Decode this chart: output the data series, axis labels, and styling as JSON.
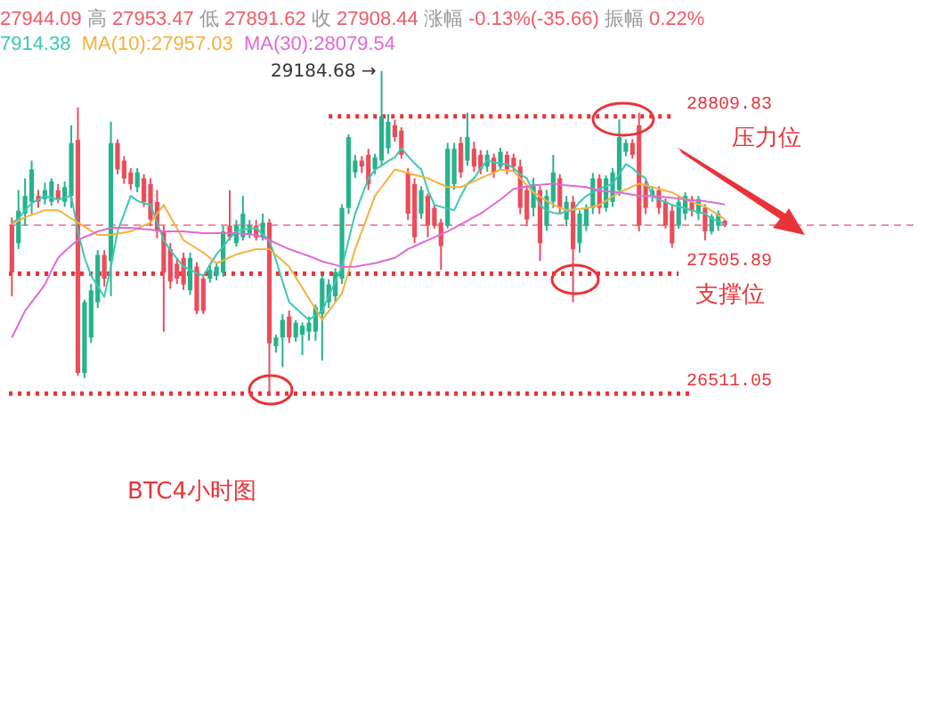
{
  "chart_data": {
    "type": "candlestick",
    "categories": [
      null,
      null,
      null,
      null,
      null,
      null,
      null,
      null,
      null,
      null,
      null,
      null,
      null,
      null,
      null,
      null,
      null,
      null,
      null,
      null,
      null,
      null,
      null,
      null,
      null,
      null,
      null,
      null,
      null,
      null,
      null,
      null,
      null,
      null,
      null,
      null,
      null,
      null,
      null,
      null,
      null,
      null,
      null,
      null,
      null,
      null,
      null,
      null,
      null,
      null,
      null,
      null,
      null,
      null,
      null,
      null,
      null,
      null,
      null,
      null,
      null,
      null,
      null,
      null,
      null,
      null,
      null,
      null,
      null,
      null,
      null,
      null,
      null,
      null,
      null,
      null,
      null,
      null,
      null,
      null,
      null,
      null,
      null,
      null,
      null,
      null,
      null,
      null,
      null,
      null,
      null,
      null,
      null,
      null,
      null,
      null,
      null,
      null,
      null,
      null,
      null,
      null,
      null,
      null,
      null,
      null,
      null,
      null,
      null
    ],
    "ohlc": [
      [
        27904,
        27973,
        27318,
        27514
      ],
      [
        27758,
        28198,
        27709,
        28027
      ],
      [
        28003,
        28296,
        27904,
        28150
      ],
      [
        28101,
        28443,
        28003,
        28370
      ],
      [
        28150,
        28200,
        28050,
        28101
      ],
      [
        28124,
        28260,
        28080,
        28198
      ],
      [
        28101,
        28296,
        28070,
        28271
      ],
      [
        28198,
        28250,
        28090,
        28124
      ],
      [
        28101,
        28270,
        28060,
        28223
      ],
      [
        28150,
        28736,
        28050,
        28589
      ],
      [
        28614,
        28883,
        26660,
        26682
      ],
      [
        26682,
        27290,
        26640,
        27269
      ],
      [
        26976,
        27420,
        26930,
        27367
      ],
      [
        27269,
        27700,
        27220,
        27660
      ],
      [
        27660,
        27700,
        27400,
        27464
      ],
      [
        27611,
        28765,
        27318,
        28589
      ],
      [
        28589,
        28620,
        28330,
        28370
      ],
      [
        28443,
        28480,
        28250,
        28296
      ],
      [
        28345,
        28380,
        28200,
        28248
      ],
      [
        28223,
        28380,
        28180,
        28345
      ],
      [
        28296,
        28330,
        28060,
        28101
      ],
      [
        28248,
        28296,
        27900,
        27954
      ],
      [
        28101,
        28200,
        27800,
        27856
      ],
      [
        27856,
        27900,
        27024,
        27514
      ],
      [
        27709,
        27760,
        27380,
        27440
      ],
      [
        27587,
        27640,
        27420,
        27464
      ],
      [
        27636,
        27680,
        27370,
        27416
      ],
      [
        27367,
        27680,
        27330,
        27636
      ],
      [
        27563,
        27600,
        27170,
        27196
      ],
      [
        27464,
        27500,
        27170,
        27196
      ],
      [
        27464,
        27580,
        27430,
        27538
      ],
      [
        27489,
        27600,
        27450,
        27563
      ],
      [
        27514,
        27904,
        27480,
        27856
      ],
      [
        27904,
        28198,
        27780,
        27807
      ],
      [
        27758,
        27950,
        27730,
        27904
      ],
      [
        27807,
        28150,
        27780,
        28003
      ],
      [
        27832,
        27950,
        27800,
        27904
      ],
      [
        27904,
        27950,
        27780,
        27807
      ],
      [
        27807,
        28003,
        27780,
        27929
      ],
      [
        27929,
        27960,
        26511.05,
        26927
      ],
      [
        26903,
        27000,
        26850,
        26976
      ],
      [
        26976,
        27170,
        26731,
        27122
      ],
      [
        27150,
        27200,
        26930,
        26976
      ],
      [
        26976,
        27120,
        26940,
        27098
      ],
      [
        27000,
        27100,
        26830,
        27074
      ],
      [
        27024,
        27150,
        26950,
        27098
      ],
      [
        27024,
        27250,
        26950,
        27225
      ],
      [
        27171,
        27490,
        26785,
        27464
      ],
      [
        27269,
        27460,
        27220,
        27416
      ],
      [
        27318,
        27550,
        27270,
        27518
      ],
      [
        27464,
        28080,
        27420,
        28051
      ],
      [
        28051,
        28660,
        28000,
        28638
      ],
      [
        28345,
        28490,
        28300,
        28443
      ],
      [
        28443,
        28480,
        28340,
        28394
      ],
      [
        28491,
        28540,
        28200,
        28248
      ],
      [
        28370,
        28500,
        28330,
        28471
      ],
      [
        28443,
        29184.68,
        28400,
        28810
      ],
      [
        28545,
        28830,
        28500,
        28765
      ],
      [
        28736,
        28780,
        28600,
        28638
      ],
      [
        28692,
        28720,
        28460,
        28491
      ],
      [
        28345,
        28380,
        27950,
        28003
      ],
      [
        28248,
        28296,
        27760,
        27807
      ],
      [
        28003,
        28230,
        27960,
        28198
      ],
      [
        28150,
        28170,
        27807,
        27904
      ],
      [
        28051,
        28080,
        27880,
        27904
      ],
      [
        27929,
        27960,
        27538,
        27734
      ],
      [
        27904,
        28590,
        27880,
        28541
      ],
      [
        28248,
        28590,
        28200,
        28541
      ],
      [
        28589,
        28640,
        28300,
        28345
      ],
      [
        28443,
        28840,
        28400,
        28638
      ],
      [
        28541,
        28600,
        28350,
        28394
      ],
      [
        28491,
        28530,
        28330,
        28370
      ],
      [
        28394,
        28530,
        28350,
        28491
      ],
      [
        28467,
        28500,
        28300,
        28345
      ],
      [
        28394,
        28550,
        28360,
        28516
      ],
      [
        28491,
        28520,
        28330,
        28370
      ],
      [
        28467,
        28500,
        28350,
        28394
      ],
      [
        28394,
        28450,
        28000,
        28051
      ],
      [
        28198,
        28230,
        27900,
        27954
      ],
      [
        28051,
        28300,
        27980,
        28248
      ],
      [
        28198,
        28230,
        27611,
        27758
      ],
      [
        27904,
        28200,
        27860,
        28150
      ],
      [
        28101,
        28491,
        28050,
        28345
      ],
      [
        28296,
        28330,
        28000,
        28051
      ],
      [
        27954,
        28150,
        27900,
        28101
      ],
      [
        28101,
        28150,
        27269,
        27709
      ],
      [
        27758,
        28030,
        27680,
        28003
      ],
      [
        27904,
        28080,
        27860,
        28051
      ],
      [
        28051,
        28340,
        28000,
        28296
      ],
      [
        28296,
        28330,
        28000,
        28051
      ],
      [
        28051,
        28320,
        28020,
        28296
      ],
      [
        28101,
        28380,
        28060,
        28345
      ],
      [
        28198,
        28785,
        28150,
        28638
      ],
      [
        28516,
        28620,
        28480,
        28589
      ],
      [
        28589,
        28620,
        28460,
        28491
      ],
      [
        28736,
        28840,
        27856,
        27904
      ],
      [
        28248,
        28280,
        28000,
        28051
      ],
      [
        28150,
        28230,
        28100,
        28198
      ],
      [
        28198,
        28230,
        28000,
        28051
      ],
      [
        28101,
        28130,
        27880,
        27904
      ],
      [
        28027,
        28080,
        27720,
        27758
      ],
      [
        27904,
        28150,
        27880,
        28101
      ],
      [
        28003,
        28180,
        27950,
        28150
      ],
      [
        28124,
        28150,
        27980,
        28027
      ],
      [
        28003,
        28150,
        27950,
        28124
      ],
      [
        28051,
        28080,
        27780,
        27856
      ],
      [
        27856,
        28000,
        27830,
        27979
      ],
      [
        27904,
        28030,
        27860,
        28003
      ],
      [
        27944.09,
        27953.47,
        27891.62,
        27908.44
      ]
    ],
    "colors": [
      "#eb4d5c",
      "#26b38d",
      "#26b38d",
      "#26b38d",
      "#eb4d5c",
      "#26b38d",
      "#26b38d",
      "#eb4d5c",
      "#26b38d",
      "#26b38d",
      "#eb4d5c",
      "#26b38d",
      "#26b38d",
      "#26b38d",
      "#eb4d5c",
      "#26b38d",
      "#eb4d5c",
      "#eb4d5c",
      "#eb4d5c",
      "#26b38d",
      "#eb4d5c",
      "#eb4d5c",
      "#eb4d5c",
      "#eb4d5c",
      "#eb4d5c",
      "#eb4d5c",
      "#eb4d5c",
      "#26b38d",
      "#eb4d5c",
      "#eb4d5c",
      "#26b38d",
      "#26b38d",
      "#26b38d",
      "#eb4d5c",
      "#26b38d",
      "#26b38d",
      "#26b38d",
      "#eb4d5c",
      "#26b38d",
      "#eb4d5c",
      "#26b38d",
      "#26b38d",
      "#eb4d5c",
      "#26b38d",
      "#26b38d",
      "#26b38d",
      "#26b38d",
      "#26b38d",
      "#26b38d",
      "#26b38d",
      "#26b38d",
      "#26b38d",
      "#26b38d",
      "#eb4d5c",
      "#eb4d5c",
      "#26b38d",
      "#26b38d",
      "#26b38d",
      "#eb4d5c",
      "#eb4d5c",
      "#eb4d5c",
      "#eb4d5c",
      "#26b38d",
      "#eb4d5c",
      "#eb4d5c",
      "#eb4d5c",
      "#26b38d",
      "#26b38d",
      "#eb4d5c",
      "#26b38d",
      "#eb4d5c",
      "#eb4d5c",
      "#26b38d",
      "#eb4d5c",
      "#26b38d",
      "#eb4d5c",
      "#eb4d5c",
      "#eb4d5c",
      "#eb4d5c",
      "#26b38d",
      "#eb4d5c",
      "#26b38d",
      "#26b38d",
      "#eb4d5c",
      "#26b38d",
      "#eb4d5c",
      "#26b38d",
      "#26b38d",
      "#26b38d",
      "#eb4d5c",
      "#26b38d",
      "#26b38d",
      "#26b38d",
      "#26b38d",
      "#eb4d5c",
      "#eb4d5c",
      "#eb4d5c",
      "#26b38d",
      "#eb4d5c",
      "#eb4d5c",
      "#eb4d5c",
      "#26b38d",
      "#26b38d",
      "#eb4d5c",
      "#26b38d",
      "#eb4d5c",
      "#26b38d",
      "#26b38d",
      "#eb4d5c"
    ],
    "series": [
      {
        "name": "7914.38",
        "type": "line",
        "color": "#3cc8b4",
        "values": [
          27929,
          27960,
          28032,
          28090,
          28120,
          28150,
          28135,
          28120,
          28135,
          28150,
          27856,
          27640,
          27490,
          27400,
          27313,
          27560,
          27856,
          28000,
          28150,
          28110,
          28090,
          28076,
          27930,
          27783,
          27700,
          27630,
          27563,
          27540,
          27510,
          27489,
          27580,
          27665,
          27730,
          27800,
          27856,
          27870,
          27880,
          27885,
          27830,
          27783,
          27620,
          27440,
          27269,
          27220,
          27170,
          27122,
          27160,
          27196,
          27320,
          27440,
          27563,
          27780,
          28003,
          28150,
          28290,
          28369,
          28400,
          28440,
          28470,
          28545,
          28480,
          28420,
          28369,
          28200,
          28076,
          28060,
          28045,
          28032,
          28150,
          28250,
          28296,
          28380,
          28443,
          28430,
          28420,
          28414,
          28380,
          28330,
          28296,
          28180,
          28076,
          28030,
          28010,
          28003,
          28020,
          28032,
          28100,
          28150,
          28179,
          28210,
          28230,
          28252,
          28330,
          28414,
          28380,
          28330,
          28296,
          28150,
          28120,
          28100,
          28076,
          28060,
          28047,
          28030,
          28015,
          28003,
          27960,
          27940,
          27914.38
        ]
      },
      {
        "name": "MA(10):27957.03",
        "type": "line",
        "color": "#f3b13f",
        "values": [
          27915,
          27944,
          27973,
          27993,
          28012,
          28032,
          28032,
          28032,
          27998,
          27963,
          27929,
          27895,
          27861,
          27827,
          27827,
          27827,
          27837,
          27846,
          27856,
          27880,
          27905,
          27929,
          28003,
          28076,
          27978,
          27881,
          27783,
          27749,
          27714,
          27680,
          27636,
          27592,
          27616,
          27641,
          27665,
          27680,
          27694,
          27709,
          27709,
          27709,
          27660,
          27612,
          27563,
          27475,
          27387,
          27299,
          27210,
          27122,
          27195,
          27269,
          27342,
          27525,
          27709,
          27856,
          28003,
          28150,
          28223,
          28296,
          28369,
          28355,
          28340,
          28325,
          28311,
          28296,
          28272,
          28247,
          28223,
          28223,
          28223,
          28247,
          28272,
          28296,
          28320,
          28345,
          28369,
          28362,
          28355,
          28296,
          28238,
          28179,
          28145,
          28110,
          28076,
          28054,
          28032,
          28037,
          28042,
          28047,
          28061,
          28076,
          28110,
          28145,
          28179,
          28203,
          28228,
          28252,
          28238,
          28223,
          28208,
          28194,
          28179,
          28150,
          28120,
          28100,
          28081,
          28061,
          28026,
          27992,
          27957.03
        ]
      },
      {
        "name": "MA(30):28079.54",
        "type": "line",
        "color": "#df6ad6",
        "values": [
          26976,
          27086,
          27196,
          27270,
          27340,
          27416,
          27530,
          27637,
          27690,
          27740,
          27783,
          27810,
          27830,
          27856,
          27870,
          27885,
          27885,
          27885,
          27885,
          27880,
          27875,
          27870,
          27863,
          27856,
          27856,
          27856,
          27856,
          27851,
          27846,
          27841,
          27841,
          27841,
          27841,
          27841,
          27841,
          27836,
          27832,
          27827,
          27805,
          27783,
          27758,
          27733,
          27709,
          27690,
          27670,
          27651,
          27630,
          27607,
          27592,
          27578,
          27563,
          27563,
          27563,
          27573,
          27583,
          27592,
          27607,
          27621,
          27636,
          27672,
          27709,
          27734,
          27758,
          27783,
          27807,
          27832,
          27856,
          27885,
          27915,
          27944,
          27974,
          28003,
          28042,
          28081,
          28120,
          28164,
          28208,
          28218,
          28228,
          28237,
          28242,
          28247,
          28252,
          28245,
          28237,
          28232,
          28228,
          28223,
          28208,
          28193,
          28188,
          28184,
          28179,
          28169,
          28160,
          28150,
          28150,
          28150,
          28145,
          28140,
          28135,
          28128,
          28120,
          28115,
          28110,
          28106,
          28097,
          28088,
          28079.54
        ]
      }
    ],
    "ylim": [
      23870,
      29775
    ],
    "yticks": [
      26511.05,
      27505.89,
      28809.83
    ],
    "tick_labels": "y",
    "ref_lines": [
      {
        "axis": "y",
        "value": 28809.83,
        "label": null,
        "color": "#e8333a",
        "line_style": "dotted"
      },
      {
        "axis": "y",
        "value": 27505.89,
        "label": null,
        "color": "#e8333a",
        "line_style": "dotted"
      },
      {
        "axis": "y",
        "value": 26511.05,
        "label": null,
        "color": "#e8333a",
        "line_style": "dotted"
      },
      {
        "axis": "y",
        "value": 27908.44,
        "label": null,
        "color": "#ef8fa0",
        "line_style": "dashed"
      }
    ],
    "annotations": [
      "27944.09 高 27953.47 低 27891.62 收 27908.44 涨幅 -0.13%(-35.66) 振幅 0.22%",
      "29184.68 →",
      "压力位",
      "支撑位",
      "BTC4小时图"
    ],
    "legend": "top left",
    "marker": "none",
    "line_style": "solid"
  }
}
